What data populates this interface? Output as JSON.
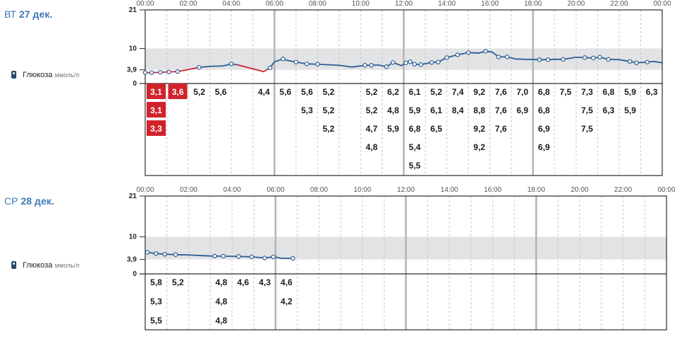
{
  "days": [
    {
      "weekday": "ВТ",
      "date": "27 дек.",
      "metric_label": "Глюкоза",
      "metric_unit": "ммоль/л",
      "icon": "glucose-meter-icon",
      "y_ticks": [
        "21",
        "10",
        "3,9",
        "0"
      ],
      "x_ticks": [
        "00:00",
        "02:00",
        "04:00",
        "06:00",
        "08:00",
        "10:00",
        "12:00",
        "14:00",
        "16:00",
        "18:00",
        "20:00",
        "22:00",
        "00:00"
      ],
      "target_range": [
        3.9,
        10
      ],
      "low_threshold": 3.9,
      "low_color": "#d0232b",
      "line_color": "#2d5e92",
      "band_color": "#e2e3e5",
      "readings_grid": [
        [
          {
            "v": "3,1",
            "low": true
          },
          {
            "v": "3,1",
            "low": true
          },
          {
            "v": "3,3",
            "low": true
          }
        ],
        [
          {
            "v": "3,6",
            "low": true
          }
        ],
        [
          {
            "v": "5,2"
          }
        ],
        [
          {
            "v": "5,6"
          }
        ],
        [],
        [
          {
            "v": "4,4"
          }
        ],
        [
          {
            "v": "5,6"
          }
        ],
        [
          {
            "v": "5,6"
          },
          {
            "v": "5,3"
          }
        ],
        [
          {
            "v": "5,2"
          },
          {
            "v": "5,2"
          },
          {
            "v": "5,2"
          }
        ],
        [],
        [
          {
            "v": "5,2"
          },
          {
            "v": "5,2"
          },
          {
            "v": "4,7"
          },
          {
            "v": "4,8"
          }
        ],
        [
          {
            "v": "6,2"
          },
          {
            "v": "4,8"
          },
          {
            "v": "5,9"
          }
        ],
        [
          {
            "v": "6,1"
          },
          {
            "v": "5,9"
          },
          {
            "v": "6,8"
          },
          {
            "v": "5,4"
          },
          {
            "v": "5,5"
          }
        ],
        [
          {
            "v": "5,2"
          },
          {
            "v": "6,1"
          },
          {
            "v": "6,5"
          }
        ],
        [
          {
            "v": "7,4"
          },
          {
            "v": "8,4"
          }
        ],
        [
          {
            "v": "9,2"
          },
          {
            "v": "8,8"
          },
          {
            "v": "9,2"
          },
          {
            "v": "9,2"
          }
        ],
        [
          {
            "v": "7,6"
          },
          {
            "v": "7,6"
          },
          {
            "v": "7,6"
          }
        ],
        [
          {
            "v": "7,0"
          },
          {
            "v": "6,9"
          }
        ],
        [
          {
            "v": "6,8"
          },
          {
            "v": "6,8"
          },
          {
            "v": "6,9"
          },
          {
            "v": "6,9"
          }
        ],
        [
          {
            "v": "7,5"
          }
        ],
        [
          {
            "v": "7,3"
          },
          {
            "v": "7,5"
          },
          {
            "v": "7,5"
          }
        ],
        [
          {
            "v": "6,8"
          },
          {
            "v": "6,3"
          }
        ],
        [
          {
            "v": "5,9"
          },
          {
            "v": "5,9"
          }
        ],
        [
          {
            "v": "6,3"
          }
        ]
      ]
    },
    {
      "weekday": "СР",
      "date": "28 дек.",
      "metric_label": "Глюкоза",
      "metric_unit": "ммоль/л",
      "icon": "glucose-meter-icon",
      "y_ticks": [
        "21",
        "10",
        "3,9",
        "0"
      ],
      "x_ticks": [
        "00:00",
        "02:00",
        "04:00",
        "06:00",
        "08:00",
        "10:00",
        "12:00",
        "14:00",
        "16:00",
        "18:00",
        "20:00",
        "22:00",
        "00:00"
      ],
      "target_range": [
        3.9,
        10
      ],
      "low_threshold": 3.9,
      "low_color": "#d0232b",
      "line_color": "#2d5e92",
      "band_color": "#e2e3e5",
      "readings_grid": [
        [
          {
            "v": "5,8"
          },
          {
            "v": "5,3"
          },
          {
            "v": "5,5"
          }
        ],
        [
          {
            "v": "5,2"
          }
        ],
        [],
        [
          {
            "v": "4,8"
          },
          {
            "v": "4,8"
          },
          {
            "v": "4,8"
          }
        ],
        [
          {
            "v": "4,6"
          }
        ],
        [
          {
            "v": "4,3"
          }
        ],
        [
          {
            "v": "4,6"
          },
          {
            "v": "4,2"
          }
        ],
        [],
        [],
        [],
        [],
        [],
        [],
        [],
        [],
        [],
        [],
        [],
        [],
        [],
        [],
        [],
        [],
        []
      ]
    }
  ],
  "chart_data": [
    {
      "type": "line",
      "title": "ВТ 27 дек.",
      "ylabel": "Глюкоза ммоль/л",
      "ylim": [
        0,
        21
      ],
      "xlim": [
        0,
        24
      ],
      "x_unit": "hours",
      "target_band": [
        3.9,
        10
      ],
      "series": [
        {
          "name": "Глюкоза",
          "points": [
            [
              0.0,
              3.1
            ],
            [
              0.3,
              3.1
            ],
            [
              0.7,
              3.2
            ],
            [
              1.1,
              3.3
            ],
            [
              1.5,
              3.4
            ],
            [
              2.5,
              4.6
            ],
            [
              3.0,
              4.9
            ],
            [
              3.6,
              5.0
            ],
            [
              4.0,
              5.6
            ],
            [
              4.3,
              5.3
            ],
            [
              5.5,
              3.4
            ],
            [
              5.8,
              4.5
            ],
            [
              6.0,
              6.2
            ],
            [
              6.4,
              7.0
            ],
            [
              6.6,
              6.6
            ],
            [
              7.0,
              6.1
            ],
            [
              7.5,
              5.6
            ],
            [
              8.0,
              5.5
            ],
            [
              9.0,
              5.2
            ],
            [
              9.6,
              4.7
            ],
            [
              10.2,
              5.2
            ],
            [
              10.5,
              5.2
            ],
            [
              10.8,
              5.3
            ],
            [
              11.2,
              4.8
            ],
            [
              11.5,
              6.0
            ],
            [
              11.9,
              5.1
            ],
            [
              12.1,
              5.9
            ],
            [
              12.3,
              6.2
            ],
            [
              12.5,
              5.5
            ],
            [
              12.8,
              5.4
            ],
            [
              13.3,
              6.0
            ],
            [
              13.6,
              6.1
            ],
            [
              14.0,
              7.4
            ],
            [
              14.5,
              8.2
            ],
            [
              15.0,
              8.8
            ],
            [
              15.5,
              8.7
            ],
            [
              15.8,
              9.2
            ],
            [
              16.1,
              9.0
            ],
            [
              16.4,
              7.6
            ],
            [
              16.8,
              7.6
            ],
            [
              17.2,
              7.0
            ],
            [
              17.6,
              6.9
            ],
            [
              18.3,
              6.8
            ],
            [
              18.7,
              6.8
            ],
            [
              19.1,
              6.9
            ],
            [
              19.4,
              6.9
            ],
            [
              20.0,
              7.5
            ],
            [
              20.4,
              7.4
            ],
            [
              20.8,
              7.3
            ],
            [
              21.1,
              7.5
            ],
            [
              21.5,
              6.9
            ],
            [
              22.0,
              6.8
            ],
            [
              22.5,
              6.3
            ],
            [
              22.8,
              5.9
            ],
            [
              23.3,
              6.1
            ],
            [
              23.6,
              6.3
            ],
            [
              24.0,
              5.9
            ]
          ],
          "markers": [
            0.0,
            0.3,
            0.7,
            1.1,
            1.5,
            2.5,
            4.0,
            5.8,
            6.4,
            7.0,
            7.5,
            8.0,
            10.2,
            10.5,
            11.2,
            11.5,
            12.1,
            12.3,
            12.5,
            12.8,
            13.3,
            13.6,
            14.0,
            14.5,
            15.0,
            15.8,
            16.4,
            16.8,
            18.3,
            18.7,
            19.4,
            20.4,
            20.8,
            21.1,
            21.5,
            22.5,
            22.8,
            23.3
          ]
        }
      ]
    },
    {
      "type": "line",
      "title": "СР 28 дек.",
      "ylabel": "Глюкоза ммоль/л",
      "ylim": [
        0,
        21
      ],
      "xlim": [
        0,
        24
      ],
      "x_unit": "hours",
      "target_band": [
        3.9,
        10
      ],
      "series": [
        {
          "name": "Глюкоза",
          "points": [
            [
              0.1,
              5.8
            ],
            [
              0.5,
              5.5
            ],
            [
              0.9,
              5.3
            ],
            [
              1.4,
              5.2
            ],
            [
              2.0,
              5.1
            ],
            [
              2.7,
              4.9
            ],
            [
              3.2,
              4.8
            ],
            [
              3.6,
              4.8
            ],
            [
              4.3,
              4.7
            ],
            [
              4.9,
              4.6
            ],
            [
              5.5,
              4.3
            ],
            [
              5.9,
              4.6
            ],
            [
              6.3,
              4.2
            ],
            [
              6.8,
              4.2
            ]
          ],
          "markers": [
            0.1,
            0.5,
            0.9,
            1.4,
            3.2,
            3.6,
            4.3,
            4.9,
            5.5,
            5.9,
            6.8
          ]
        }
      ]
    }
  ]
}
